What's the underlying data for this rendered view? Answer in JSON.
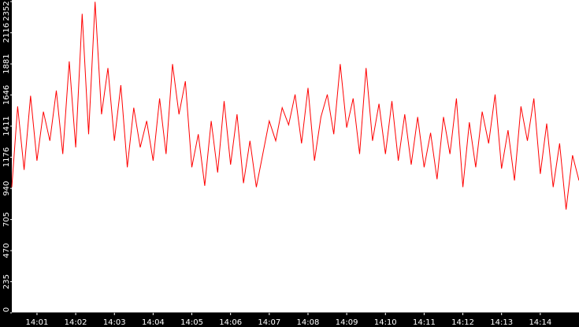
{
  "chart_data": {
    "type": "line",
    "title": "",
    "xlabel": "",
    "ylabel": "",
    "ylim": [
      0,
      2352
    ],
    "y_ticks": [
      0,
      235,
      470,
      705,
      940,
      1176,
      1411,
      1646,
      1881,
      2116,
      2352
    ],
    "y_tick_labels": [
      "0",
      "235",
      "470",
      "705",
      "940",
      "1176",
      "1411",
      "1646",
      "1881",
      "2116",
      "2352"
    ],
    "x_start": "14:00:21",
    "x_end": "14:15:00",
    "x_ticks": [
      "14:01",
      "14:02",
      "14:03",
      "14:04",
      "14:05",
      "14:06",
      "14:07",
      "14:08",
      "14:09",
      "14:10",
      "14:11",
      "14:12",
      "14:13",
      "14:14"
    ],
    "grid": false,
    "legend": "none",
    "series": [
      {
        "color": "#ff0000",
        "x": [
          "14:00:21",
          "14:00:30",
          "14:00:40",
          "14:00:50",
          "14:01:00",
          "14:01:10",
          "14:01:20",
          "14:01:30",
          "14:01:40",
          "14:01:50",
          "14:02:00",
          "14:02:10",
          "14:02:20",
          "14:02:30",
          "14:02:40",
          "14:02:50",
          "14:03:00",
          "14:03:10",
          "14:03:20",
          "14:03:30",
          "14:03:40",
          "14:03:50",
          "14:04:00",
          "14:04:10",
          "14:04:20",
          "14:04:30",
          "14:04:40",
          "14:04:50",
          "14:05:00",
          "14:05:10",
          "14:05:20",
          "14:05:30",
          "14:05:40",
          "14:05:50",
          "14:06:00",
          "14:06:10",
          "14:06:20",
          "14:06:30",
          "14:06:40",
          "14:06:50",
          "14:07:00",
          "14:07:10",
          "14:07:20",
          "14:07:30",
          "14:07:40",
          "14:07:50",
          "14:08:00",
          "14:08:10",
          "14:08:20",
          "14:08:30",
          "14:08:40",
          "14:08:50",
          "14:09:00",
          "14:09:10",
          "14:09:20",
          "14:09:30",
          "14:09:40",
          "14:09:50",
          "14:10:00",
          "14:10:10",
          "14:10:20",
          "14:10:30",
          "14:10:40",
          "14:10:50",
          "14:11:00",
          "14:11:10",
          "14:11:20",
          "14:11:30",
          "14:11:40",
          "14:11:50",
          "14:12:00",
          "14:12:10",
          "14:12:20",
          "14:12:30",
          "14:12:40",
          "14:12:50",
          "14:13:00",
          "14:13:10",
          "14:13:20",
          "14:13:30",
          "14:13:40",
          "14:13:50",
          "14:14:00",
          "14:14:10",
          "14:14:20",
          "14:14:30",
          "14:14:40",
          "14:14:50",
          "14:15:00"
        ],
        "y": [
          950,
          1560,
          1080,
          1640,
          1150,
          1520,
          1300,
          1680,
          1200,
          1900,
          1250,
          2260,
          1350,
          2350,
          1500,
          1850,
          1300,
          1720,
          1100,
          1550,
          1250,
          1450,
          1150,
          1620,
          1200,
          1880,
          1500,
          1750,
          1100,
          1350,
          960,
          1450,
          1060,
          1600,
          1120,
          1500,
          980,
          1300,
          950,
          1200,
          1450,
          1300,
          1550,
          1420,
          1650,
          1280,
          1700,
          1150,
          1480,
          1650,
          1350,
          1880,
          1400,
          1620,
          1200,
          1850,
          1300,
          1580,
          1200,
          1600,
          1150,
          1500,
          1120,
          1480,
          1100,
          1360,
          1010,
          1480,
          1200,
          1620,
          950,
          1440,
          1100,
          1520,
          1280,
          1650,
          1090,
          1380,
          1000,
          1560,
          1300,
          1620,
          1050,
          1430,
          950,
          1280,
          780,
          1190,
          1000
        ]
      }
    ]
  }
}
